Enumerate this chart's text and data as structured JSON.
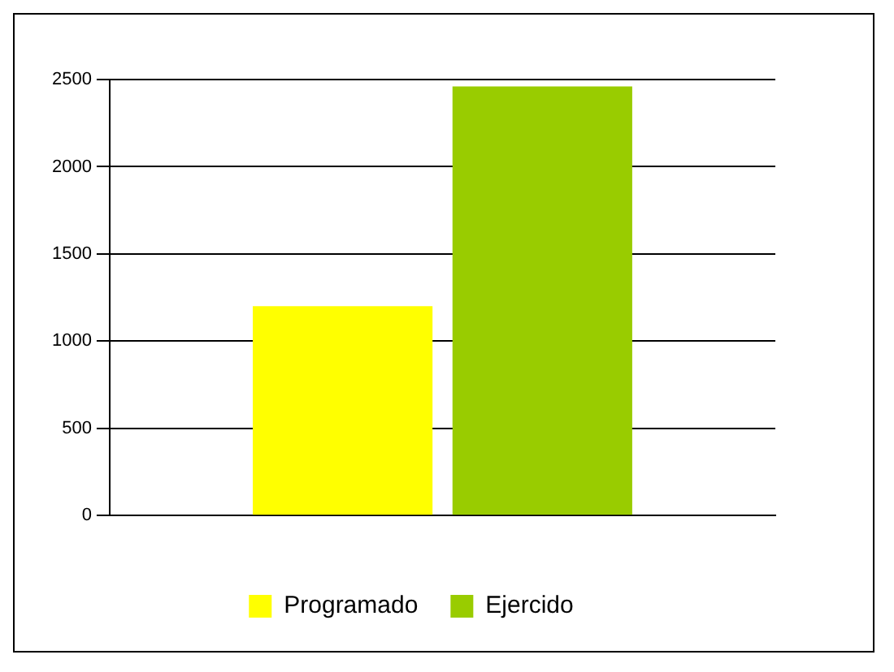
{
  "chart_data": {
    "type": "bar",
    "categories": [
      null
    ],
    "series": [
      {
        "name": "Programado",
        "color": "#ffff00",
        "values": [
          1200
        ]
      },
      {
        "name": "Ejercido",
        "color": "#99cc00",
        "values": [
          2460
        ]
      }
    ],
    "ylim": [
      0,
      2500
    ],
    "yticks": [
      0,
      500,
      1000,
      1500,
      2000,
      2500
    ],
    "grid": "y",
    "legend": "bottom"
  }
}
